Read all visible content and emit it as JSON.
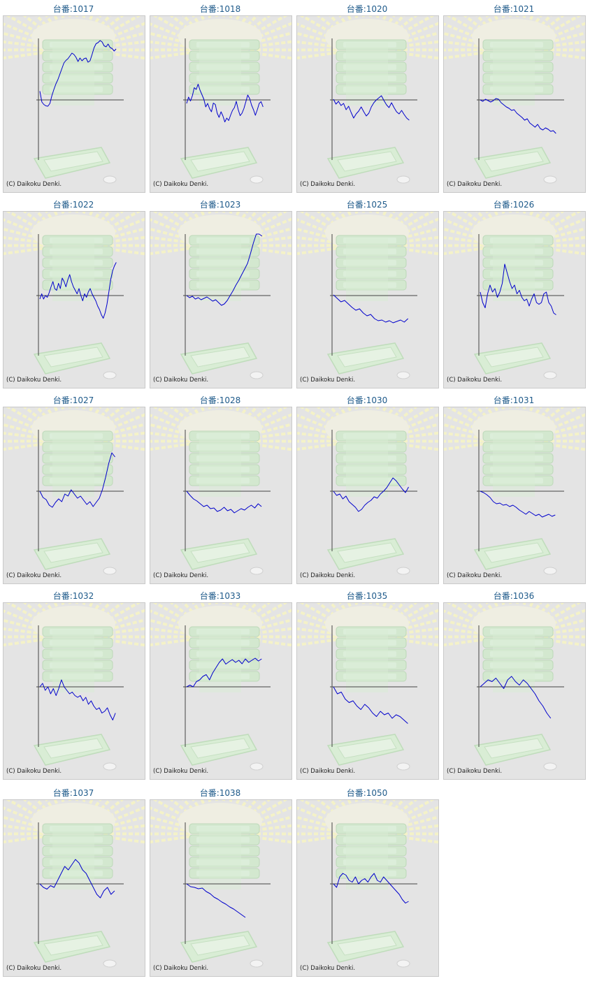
{
  "copyright": "(C) Daikoku Denki.",
  "colors": {
    "line": "#0000cc",
    "axis": "#444444",
    "title": "#1e5a8a",
    "panel": "#e4e4e4"
  },
  "chart_data": [
    {
      "type": "line",
      "label": "台番:1017",
      "y": [
        25,
        -6,
        -13,
        -17,
        -18,
        -10,
        12,
        30,
        46,
        58,
        74,
        90,
        106,
        113,
        118,
        126,
        134,
        130,
        122,
        110,
        120,
        112,
        118,
        120,
        108,
        112,
        130,
        149,
        161,
        164,
        170,
        166,
        155,
        152,
        160,
        150,
        147,
        140,
        146
      ]
    },
    {
      "type": "line",
      "label": "台番:1018",
      "y": [
        -10,
        8,
        -3,
        12,
        35,
        30,
        45,
        28,
        15,
        2,
        -20,
        -10,
        -25,
        -34,
        -9,
        -13,
        -38,
        -50,
        -34,
        -46,
        -63,
        -52,
        -59,
        -44,
        -30,
        -22,
        -4,
        -28,
        -45,
        -38,
        -24,
        -5,
        14,
        4,
        -15,
        -28,
        -44,
        -28,
        -10,
        -5,
        -20
      ]
    },
    {
      "type": "line",
      "label": "台番:1020",
      "y": [
        2,
        -12,
        -4,
        -16,
        -10,
        -28,
        -18,
        -36,
        -52,
        -40,
        -32,
        -20,
        -34,
        -46,
        -38,
        -20,
        -8,
        0,
        6,
        12,
        -2,
        -14,
        -22,
        -8,
        -22,
        -34,
        -40,
        -30,
        -42,
        -52,
        -58
      ]
    },
    {
      "type": "line",
      "label": "台番:1021",
      "y": [
        0,
        -4,
        2,
        -2,
        -6,
        -2,
        4,
        2,
        -8,
        -14,
        -20,
        -24,
        -30,
        -28,
        -38,
        -44,
        -50,
        -58,
        -54,
        -66,
        -72,
        -78,
        -70,
        -82,
        -86,
        -80,
        -84,
        -90,
        -88,
        -96
      ]
    },
    {
      "type": "line",
      "label": "台番:1022",
      "y": [
        -10,
        5,
        -10,
        0,
        -5,
        8,
        25,
        40,
        20,
        15,
        35,
        20,
        50,
        40,
        25,
        45,
        60,
        40,
        25,
        15,
        5,
        20,
        0,
        -15,
        5,
        -5,
        10,
        20,
        5,
        -5,
        -15,
        -30,
        -40,
        -55,
        -65,
        -50,
        -25,
        10,
        45,
        70,
        85,
        95
      ]
    },
    {
      "type": "line",
      "label": "台番:1023",
      "y": [
        0,
        -6,
        -2,
        -10,
        -6,
        -12,
        -8,
        -4,
        -10,
        -16,
        -12,
        -20,
        -28,
        -24,
        -14,
        0,
        14,
        30,
        44,
        60,
        76,
        92,
        120,
        150,
        180,
        176,
        170
      ]
    },
    {
      "type": "line",
      "label": "台番:1025",
      "y": [
        2,
        -8,
        -18,
        -14,
        -24,
        -34,
        -42,
        -38,
        -50,
        -58,
        -54,
        -66,
        -72,
        -70,
        -76,
        -72,
        -78,
        -74,
        -70,
        -76,
        -66
      ]
    },
    {
      "type": "line",
      "label": "台番:1026",
      "y": [
        10,
        -20,
        -35,
        5,
        30,
        10,
        20,
        -5,
        10,
        35,
        90,
        65,
        40,
        20,
        30,
        5,
        15,
        -5,
        -15,
        -10,
        -30,
        -10,
        5,
        -20,
        -25,
        -20,
        5,
        10,
        -20,
        -30,
        -50,
        -55
      ]
    },
    {
      "type": "line",
      "label": "台番:1027",
      "y": [
        0,
        -18,
        -24,
        -40,
        -46,
        -32,
        -22,
        -30,
        -8,
        -14,
        4,
        -8,
        -20,
        -14,
        -26,
        -38,
        -30,
        -44,
        -32,
        -20,
        5,
        40,
        80,
        110,
        98
      ]
    },
    {
      "type": "line",
      "label": "台番:1028",
      "y": [
        0,
        -12,
        -22,
        -28,
        -36,
        -44,
        -40,
        -50,
        -48,
        -58,
        -54,
        -46,
        -56,
        -52,
        -62,
        -56,
        -50,
        -54,
        -46,
        -40,
        -48,
        -36,
        -44
      ]
    },
    {
      "type": "line",
      "label": "台番:1030",
      "y": [
        0,
        -12,
        -8,
        -22,
        -14,
        -30,
        -38,
        -46,
        -58,
        -52,
        -40,
        -32,
        -26,
        -16,
        -20,
        -8,
        0,
        10,
        24,
        38,
        30,
        18,
        6,
        -4,
        12
      ]
    },
    {
      "type": "line",
      "label": "台番:1031",
      "y": [
        0,
        -4,
        -10,
        -18,
        -30,
        -36,
        -34,
        -40,
        -38,
        -44,
        -40,
        -46,
        -54,
        -60,
        -66,
        -58,
        -64,
        -70,
        -66,
        -74,
        -70,
        -66,
        -72,
        -68
      ]
    },
    {
      "type": "line",
      "label": "台番:1032",
      "y": [
        0,
        10,
        -10,
        0,
        -20,
        -5,
        -25,
        -5,
        20,
        0,
        -10,
        -20,
        -15,
        -25,
        -30,
        -25,
        -40,
        -30,
        -50,
        -40,
        -55,
        -65,
        -60,
        -75,
        -70,
        -60,
        -80,
        -95,
        -75
      ]
    },
    {
      "type": "line",
      "label": "台番:1033",
      "y": [
        0,
        5,
        0,
        15,
        20,
        30,
        35,
        20,
        40,
        55,
        70,
        80,
        65,
        72,
        78,
        70,
        76,
        66,
        80,
        70,
        76,
        82,
        74,
        80
      ]
    },
    {
      "type": "line",
      "label": "台番:1035",
      "y": [
        0,
        -20,
        -15,
        -35,
        -45,
        -40,
        -55,
        -65,
        -50,
        -60,
        -75,
        -85,
        -70,
        -80,
        -75,
        -90,
        -80,
        -85,
        -95,
        -105
      ]
    },
    {
      "type": "line",
      "label": "台番:1036",
      "y": [
        0,
        10,
        20,
        15,
        25,
        10,
        -5,
        20,
        30,
        15,
        5,
        20,
        10,
        -5,
        -20,
        -40,
        -55,
        -75,
        -90
      ]
    },
    {
      "type": "line",
      "label": "台番:1037",
      "y": [
        0,
        -10,
        -15,
        -5,
        -10,
        10,
        30,
        50,
        40,
        55,
        70,
        60,
        40,
        30,
        10,
        -10,
        -30,
        -40,
        -20,
        -10,
        -30,
        -20
      ]
    },
    {
      "type": "line",
      "label": "台番:1038",
      "y": [
        0,
        -8,
        -10,
        -14,
        -12,
        -22,
        -28,
        -38,
        -44,
        -52,
        -58,
        -66,
        -72,
        -80,
        -88,
        -96
      ]
    },
    {
      "type": "line",
      "label": "台番:1050",
      "y": [
        0,
        -10,
        20,
        30,
        25,
        10,
        5,
        20,
        0,
        10,
        15,
        5,
        20,
        30,
        10,
        5,
        20,
        10,
        0,
        -10,
        -20,
        -30,
        -45,
        -55,
        -50
      ]
    }
  ]
}
